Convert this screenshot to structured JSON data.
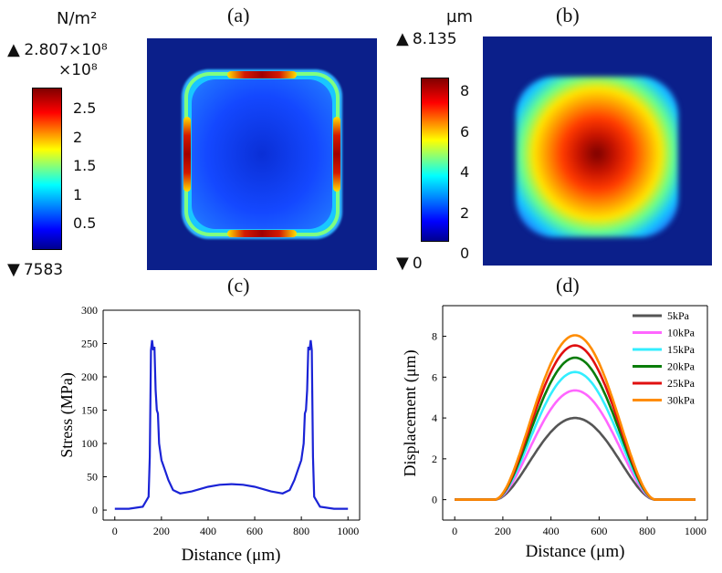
{
  "panels": {
    "a": {
      "label": "(a)",
      "unit": "N/m²",
      "max_value": "2.807×10⁸",
      "scale_factor": "×10⁸",
      "min_value": "7583",
      "colorbar_ticks": [
        "2.5",
        "2",
        "1.5",
        "1",
        "0.5"
      ],
      "max_arrow": "▲",
      "min_arrow": "▼"
    },
    "b": {
      "label": "(b)",
      "unit": "µm",
      "max_value": "8.135",
      "min_value": "0",
      "colorbar_ticks": [
        "8",
        "6",
        "4",
        "2",
        "0"
      ],
      "max_arrow": "▲",
      "min_arrow": "▼"
    },
    "c": {
      "label": "(c)"
    },
    "d": {
      "label": "(d)"
    }
  },
  "colors": {
    "map_background": "#0b1f8a",
    "stress_line": "#1a23d6",
    "jet": [
      "#00008f",
      "#0000ff",
      "#00ffff",
      "#ffff00",
      "#ff0000",
      "#800000"
    ]
  },
  "chart_data": [
    {
      "type": "line",
      "id": "stress",
      "xlabel": "Distance (μm)",
      "ylabel": "Stress (MPa)",
      "xlim": [
        -50,
        1050
      ],
      "ylim": [
        -15,
        300
      ],
      "xticks": [
        0,
        200,
        400,
        600,
        800,
        1000
      ],
      "yticks": [
        0,
        50,
        100,
        150,
        200,
        250,
        300
      ],
      "grid": false,
      "series": [
        {
          "x": [
            0,
            60,
            120,
            145,
            150,
            155,
            160,
            165,
            170,
            175,
            180,
            185,
            190,
            200,
            215,
            230,
            250,
            280,
            330,
            400,
            450,
            500,
            550,
            600,
            670,
            720,
            750,
            770,
            785,
            800,
            810,
            815,
            820,
            825,
            830,
            835,
            840,
            845,
            850,
            855,
            880,
            940,
            1000
          ],
          "y": [
            2,
            2,
            5,
            20,
            80,
            240,
            255,
            240,
            245,
            180,
            150,
            145,
            100,
            75,
            60,
            45,
            30,
            25,
            28,
            35,
            38,
            39,
            38,
            35,
            28,
            25,
            30,
            45,
            60,
            75,
            100,
            145,
            150,
            180,
            245,
            240,
            255,
            240,
            80,
            20,
            5,
            2,
            2
          ]
        }
      ]
    },
    {
      "type": "line",
      "id": "displacement",
      "xlabel": "Distance (μm)",
      "ylabel": "Displacement (μm)",
      "xlim": [
        -50,
        1050
      ],
      "ylim": [
        -1,
        9.5
      ],
      "xticks": [
        0,
        200,
        400,
        600,
        800,
        1000
      ],
      "yticks": [
        0,
        2,
        4,
        6,
        8
      ],
      "grid": false,
      "legend_position": "top-right",
      "series": [
        {
          "name": "5kPa",
          "color": "#555555",
          "peak": 4.0
        },
        {
          "name": "10kPa",
          "color": "#ff66ff",
          "peak": 5.35
        },
        {
          "name": "15kPa",
          "color": "#33eeff",
          "peak": 6.25
        },
        {
          "name": "20kPa",
          "color": "#0a7d0a",
          "peak": 6.95
        },
        {
          "name": "25kPa",
          "color": "#e01010",
          "peak": 7.55
        },
        {
          "name": "30kPa",
          "color": "#ff8c00",
          "peak": 8.05
        }
      ],
      "support": [
        165,
        835
      ],
      "x_range": [
        0,
        1000
      ]
    }
  ]
}
